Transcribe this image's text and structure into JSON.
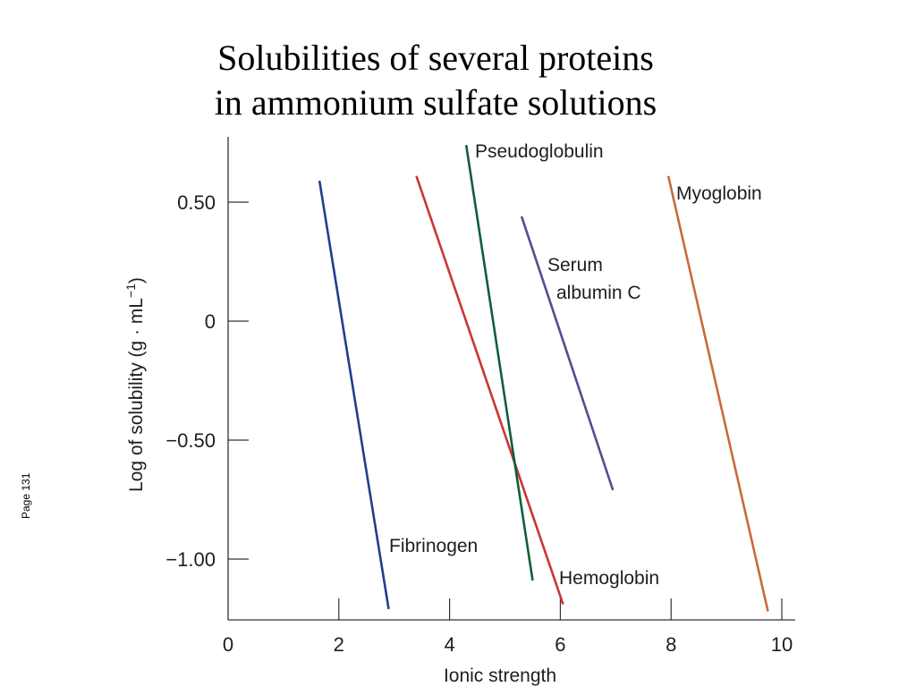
{
  "slide": {
    "title_line1": "Solubilities of several proteins",
    "title_line2": "in ammonium sulfate solutions",
    "page_label": "Page 131"
  },
  "chart_data": {
    "type": "line",
    "title": "Solubilities of several proteins in ammonium sulfate solutions",
    "xlabel": "Ionic strength",
    "ylabel": "Log of solubility (g · mL",
    "ylabel_sup": "−1",
    "ylabel_end": ")",
    "xlim": [
      0,
      10.3
    ],
    "ylim": [
      -1.27,
      0.77
    ],
    "xticks": [
      0,
      2,
      4,
      6,
      8,
      10
    ],
    "xtick_labels": [
      "0",
      "2",
      "4",
      "6",
      "8",
      "10"
    ],
    "yticks": [
      0.5,
      0,
      -0.5,
      -1.0
    ],
    "ytick_labels": [
      "0.50",
      "0",
      "−0.50",
      "−1.00"
    ],
    "grid": false,
    "series": [
      {
        "name": "Fibrinogen",
        "color": "#1f3f8c",
        "x": [
          1.65,
          2.9
        ],
        "y": [
          0.59,
          -1.21
        ]
      },
      {
        "name": "Hemoglobin",
        "color": "#cc3333",
        "x": [
          3.4,
          6.05
        ],
        "y": [
          0.61,
          -1.19
        ]
      },
      {
        "name": "Pseudoglobulin",
        "color": "#0f5e3c",
        "x": [
          4.3,
          5.5
        ],
        "y": [
          0.74,
          -1.09
        ]
      },
      {
        "name": "Serum albumin C",
        "name_line1": "Serum",
        "name_line2": "albumin C",
        "color": "#5b4a8e",
        "x": [
          5.3,
          6.95
        ],
        "y": [
          0.44,
          -0.71
        ]
      },
      {
        "name": "Myoglobin",
        "color": "#c86a3a",
        "x": [
          7.95,
          9.75
        ],
        "y": [
          0.61,
          -1.22
        ]
      }
    ]
  }
}
